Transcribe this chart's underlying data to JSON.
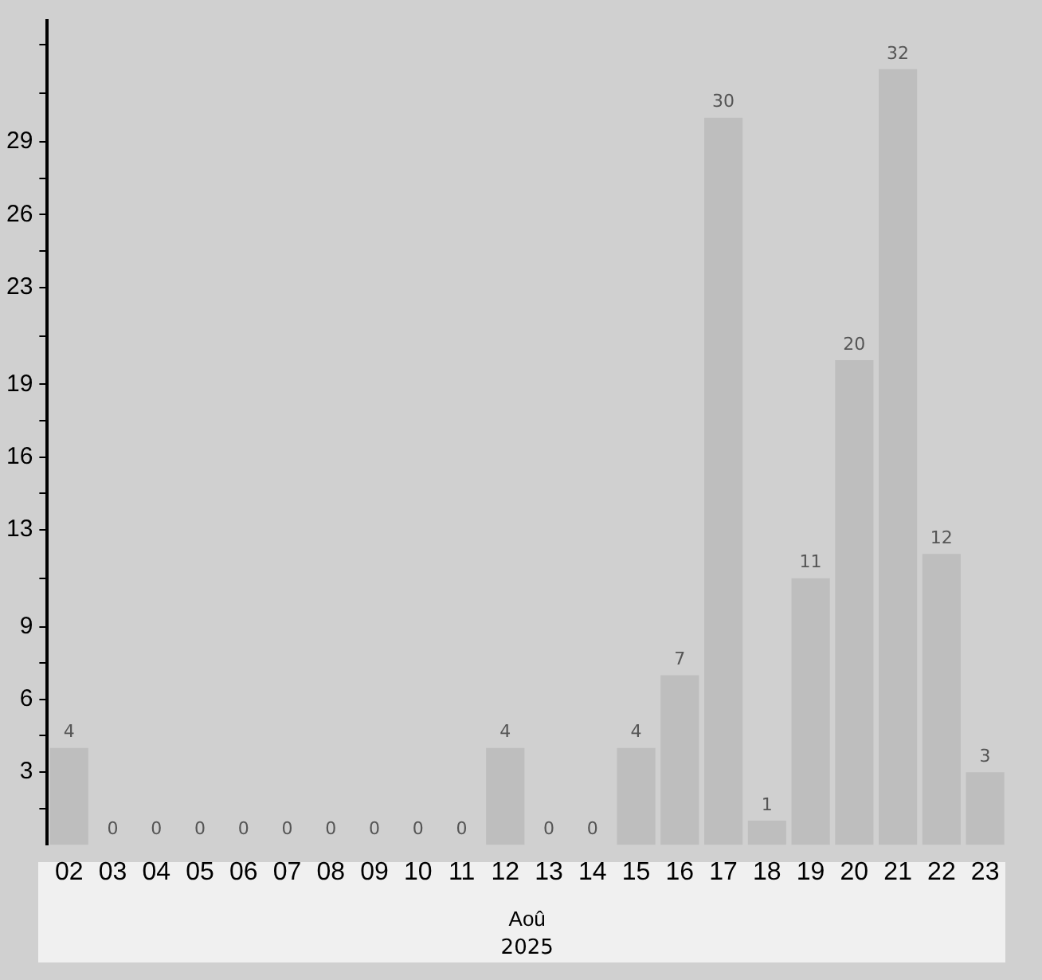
{
  "chart_data": {
    "type": "bar",
    "categories": [
      "02",
      "03",
      "04",
      "05",
      "06",
      "07",
      "08",
      "09",
      "10",
      "11",
      "12",
      "13",
      "14",
      "15",
      "16",
      "17",
      "18",
      "19",
      "20",
      "21",
      "22",
      "23"
    ],
    "values": [
      4,
      0,
      0,
      0,
      0,
      0,
      0,
      0,
      0,
      0,
      4,
      0,
      0,
      4,
      7,
      30,
      1,
      11,
      20,
      32,
      12,
      3
    ],
    "color": "#bebebe",
    "xlabel": "Aoû",
    "annotations": [
      "2025"
    ],
    "data_labels": true,
    "ylim": [
      0,
      34
    ],
    "yticks": [
      {
        "value": 1.5,
        "label": null
      },
      3,
      {
        "value": 4.5,
        "label": null
      },
      6,
      {
        "value": 7.5,
        "label": null
      },
      9,
      {
        "value": 11,
        "label": null
      },
      13,
      {
        "value": 14.5,
        "label": null
      },
      16,
      {
        "value": 17.5,
        "label": null
      },
      19,
      {
        "value": 21,
        "label": null
      },
      23,
      {
        "value": 24.5,
        "label": null
      },
      26,
      {
        "value": 27.5,
        "label": null
      },
      29,
      {
        "value": 31,
        "label": null
      },
      {
        "value": 33,
        "label": null
      }
    ],
    "grid": false,
    "legend": false
  }
}
